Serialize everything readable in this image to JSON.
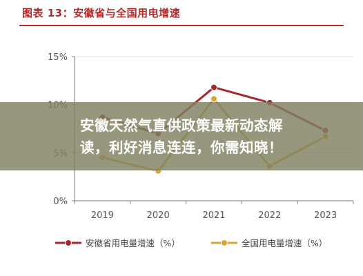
{
  "figure": {
    "title": "图表 13：安徽省与全国用电增速",
    "accent_color": "#b22a2a"
  },
  "chart_data": {
    "type": "line",
    "x": [
      "2019",
      "2020",
      "2021",
      "2022",
      "2023"
    ],
    "yticks": [
      "0%",
      "5%",
      "10%",
      "15%"
    ],
    "ylim": [
      0,
      15
    ],
    "grid": true,
    "legend_position": "bottom",
    "series": [
      {
        "name": "安徽省用电量增速（%）",
        "values": [
          8.7,
          7.0,
          11.8,
          10.2,
          7.3
        ],
        "color": "#a6262e"
      },
      {
        "name": "全国用电量增速（%）",
        "values": [
          4.5,
          3.1,
          10.6,
          3.6,
          6.7
        ],
        "color": "#d9a336"
      }
    ]
  },
  "overlay": {
    "line1": "安徽天然气直供政策最新动态解",
    "line2": "读，利好消息连连，你需知晓！"
  }
}
